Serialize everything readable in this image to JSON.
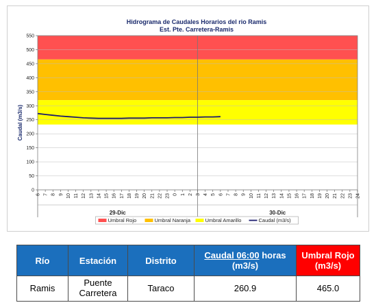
{
  "chart_data": {
    "type": "line",
    "title": "Hidrograma de Caudales Horarios del rio Ramis",
    "subtitle": "Est. Pte. Carretera-Ramis",
    "ylabel": "Caudal  (m3/s)",
    "ylim": [
      0,
      550
    ],
    "yticks": [
      0,
      50,
      100,
      150,
      200,
      250,
      300,
      350,
      400,
      450,
      500,
      550
    ],
    "x_hour_labels": [
      "6",
      "7",
      "8",
      "9",
      "10",
      "11",
      "12",
      "13",
      "14",
      "15",
      "16",
      "17",
      "18",
      "19",
      "20",
      "21",
      "22",
      "23",
      "0",
      "1",
      "2",
      "3",
      "4",
      "5",
      "6",
      "7",
      "8",
      "9",
      "10",
      "11",
      "12",
      "13",
      "14",
      "15",
      "16",
      "17",
      "18",
      "19",
      "20",
      "21",
      "22",
      "23",
      "24"
    ],
    "day_labels": [
      "29-Dic",
      "30-Dic"
    ],
    "day_split_index": 21,
    "thresholds": {
      "amarillo": [
        233,
        320
      ],
      "naranja": [
        320,
        465
      ],
      "rojo": [
        465,
        550
      ]
    },
    "series": [
      {
        "name": "Caudal (m3/s)",
        "color": "#1a1a6e",
        "x_index": [
          0,
          1,
          2,
          3,
          4,
          5,
          6,
          7,
          8,
          9,
          10,
          11,
          12,
          13,
          14,
          15,
          16,
          17,
          18,
          19,
          20,
          21,
          22,
          23,
          24
        ],
        "values": [
          272,
          269,
          266,
          263,
          261,
          259,
          257,
          256,
          255,
          255,
          255,
          255,
          256,
          256,
          256,
          257,
          257,
          257,
          258,
          258,
          259,
          259,
          260,
          260,
          261
        ]
      }
    ],
    "legend": [
      {
        "label": "Umbral Rojo",
        "color": "#ff5050",
        "kind": "box"
      },
      {
        "label": "Umbral Naranja",
        "color": "#ffc000",
        "kind": "box"
      },
      {
        "label": "Umbral Amarillo",
        "color": "#ffff00",
        "kind": "box"
      },
      {
        "label": "Caudal (m3/s)",
        "color": "#1a1a6e",
        "kind": "line"
      }
    ],
    "legend_position": "bottom"
  },
  "table": {
    "headers": {
      "rio": "Río",
      "estacion": "Estación",
      "distrito": "Distrito",
      "caudal_underlined": "Caudal  06:00",
      "caudal_rest": " horas",
      "caudal_unit": "(m3/s)",
      "umbral_line1": "Umbral Rojo",
      "umbral_line2": "(m3/s)"
    },
    "row": {
      "rio": "Ramis",
      "estacion_line1": "Puente",
      "estacion_line2": "Carretera",
      "distrito": "Taraco",
      "caudal": "260.9",
      "umbral": "465.0"
    }
  }
}
